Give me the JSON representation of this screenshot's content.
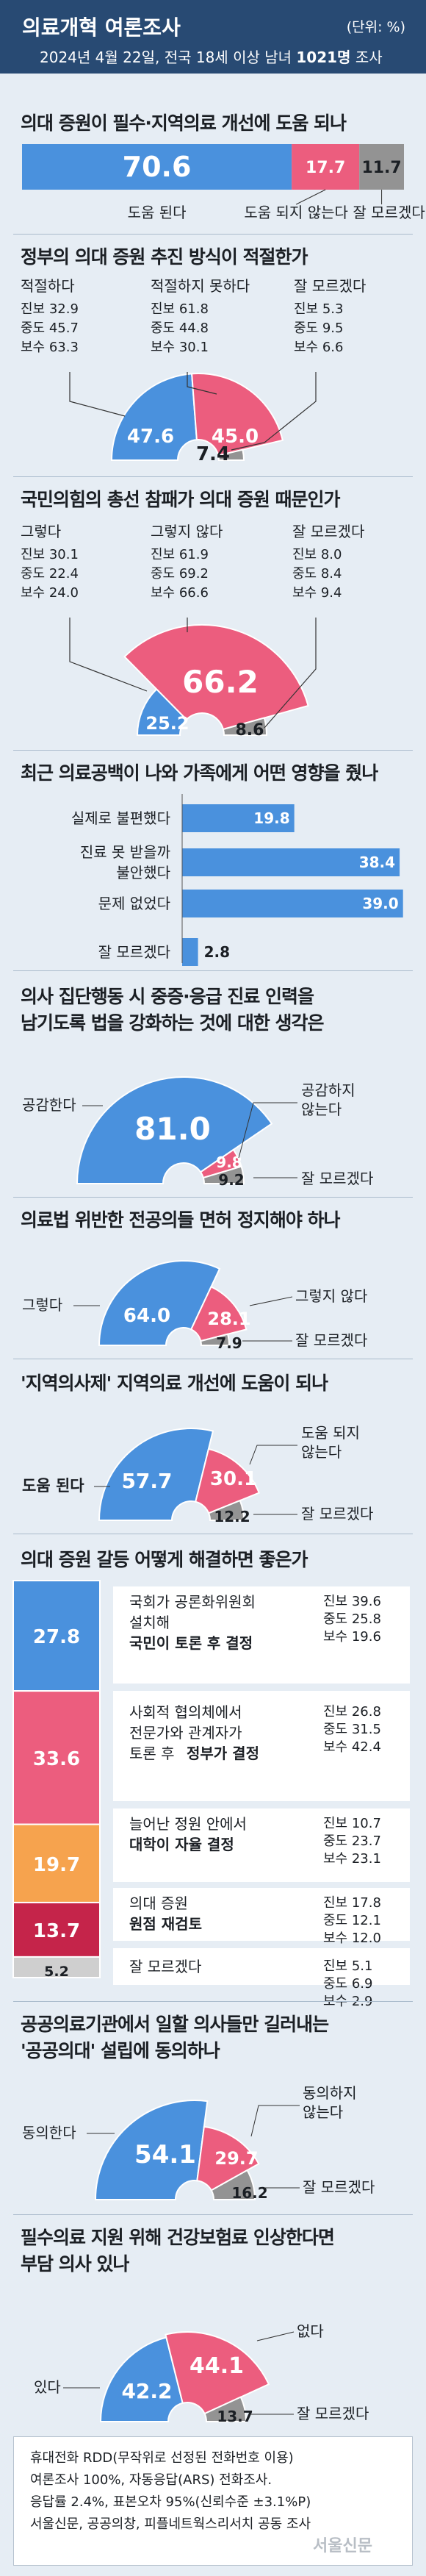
{
  "header": {
    "title": "의료개혁 여론조사",
    "unit": "(단위: %)",
    "subtitle_pre": "2024년 4월 22일, 전국 18세 이상 남녀 ",
    "subtitle_bold": "1021명",
    "subtitle_post": " 조사"
  },
  "colors": {
    "blue": "#4a91dd",
    "pink": "#ec5d7e",
    "gray": "#939393",
    "orange": "#f6a34e",
    "crimson": "#c5244a",
    "lightgray": "#cfcfcf"
  },
  "chart_data": [
    {
      "id": "q1",
      "type": "bar",
      "stacked": true,
      "title": "의대 증원이 필수·지역의료 개선에 도움 되나",
      "categories": [
        "도움 된다",
        "도움 되지 않는다",
        "잘 모르겠다"
      ],
      "values": [
        70.6,
        17.7,
        11.7
      ],
      "value_labels": [
        "70.6",
        "17.7",
        "11.7"
      ]
    },
    {
      "id": "q2",
      "type": "pie",
      "semi": true,
      "title": "정부의 의대 증원 추진 방식이 적절한가",
      "categories": [
        "적절하다",
        "적절하지 못하다",
        "잘 모르겠다"
      ],
      "values": [
        47.6,
        45.0,
        7.4
      ],
      "value_labels": [
        "47.6",
        "45.0",
        "7.4"
      ],
      "breakdown": [
        [
          "진보 32.9",
          "중도 45.7",
          "보수 63.3"
        ],
        [
          "진보 61.8",
          "중도 44.8",
          "보수 30.1"
        ],
        [
          "진보 5.3",
          "중도 9.5",
          "보수 6.6"
        ]
      ]
    },
    {
      "id": "q3",
      "type": "pie",
      "semi": true,
      "title": "국민의힘의 총선 참패가 의대 증원 때문인가",
      "categories": [
        "그렇다",
        "그렇지 않다",
        "잘 모르겠다"
      ],
      "values": [
        25.2,
        66.2,
        8.6
      ],
      "value_labels": [
        "25.2",
        "66.2",
        "8.6"
      ],
      "breakdown": [
        [
          "진보 30.1",
          "중도 22.4",
          "보수 24.0"
        ],
        [
          "진보 61.9",
          "중도 69.2",
          "보수 66.6"
        ],
        [
          "진보 8.0",
          "중도 8.4",
          "보수 9.4"
        ]
      ]
    },
    {
      "id": "q4",
      "type": "bar",
      "orientation": "horizontal",
      "title": "최근 의료공백이 나와 가족에게 어떤 영향을 줬나",
      "categories": [
        "실제로 불편했다",
        "진료 못 받을까 불안했다",
        "문제 없었다",
        "잘 모르겠다"
      ],
      "label_lines": [
        [
          "실제로 불편했다"
        ],
        [
          "진료 못 받을까",
          "불안했다"
        ],
        [
          "문제 없었다"
        ],
        [
          "잘 모르겠다"
        ]
      ],
      "values": [
        19.8,
        38.4,
        39.0,
        2.8
      ],
      "value_labels": [
        "19.8",
        "38.4",
        "39.0",
        "2.8"
      ]
    },
    {
      "id": "q5",
      "type": "pie",
      "semi": true,
      "title": "의사 집단행동 시 중증·응급 진료 인력을 남기도록 법을 강화하는 것에 대한 생각은",
      "title_lines": [
        "의사 집단행동 시 중증·응급 진료 인력을",
        "남기도록 법을 강화하는 것에 대한 생각은"
      ],
      "categories": [
        "공감한다",
        "공감하지 않는다",
        "잘 모르겠다"
      ],
      "label_lines": [
        [
          "공감한다"
        ],
        [
          "공감하지",
          "않는다"
        ],
        [
          "잘 모르겠다"
        ]
      ],
      "values": [
        81.0,
        9.8,
        9.2
      ],
      "value_labels": [
        "81.0",
        "9.8",
        "9.2"
      ]
    },
    {
      "id": "q6",
      "type": "pie",
      "semi": true,
      "title": "의료법 위반한 전공의들 면허 정지해야 하나",
      "categories": [
        "그렇다",
        "그렇지 않다",
        "잘 모르겠다"
      ],
      "values": [
        64.0,
        28.1,
        7.9
      ],
      "value_labels": [
        "64.0",
        "28.1",
        "7.9"
      ]
    },
    {
      "id": "q7",
      "type": "pie",
      "semi": true,
      "title": "'지역의사제' 지역의료 개선에 도움이 되나",
      "categories": [
        "도움 된다",
        "도움 되지 않는다",
        "잘 모르겠다"
      ],
      "label_lines": [
        [
          "도움 된다"
        ],
        [
          "도움 되지",
          "않는다"
        ],
        [
          "잘 모르겠다"
        ]
      ],
      "values": [
        57.7,
        30.1,
        12.2
      ],
      "value_labels": [
        "57.7",
        "30.1",
        "12.2"
      ]
    },
    {
      "id": "q8",
      "type": "bar",
      "stacked": true,
      "orientation": "vertical",
      "title": "의대 증원 갈등 어떻게 해결하면 좋은가",
      "categories": [
        "국회가 공론화위원회 설치해 국민이 토론 후 결정",
        "사회적 협의체에서 전문가와 관계자가 토론 후 정부가 결정",
        "늘어난 정원 안에서 대학이 자율 결정",
        "의대 증원 원점 재검토",
        "잘 모르겠다"
      ],
      "label_lines": [
        {
          "normal": [
            "국회가 공론화위원회",
            "설치해"
          ],
          "bold": [
            "국민이 토론 후 결정"
          ]
        },
        {
          "normal": [
            "사회적 협의체에서",
            "전문가와 관계자가"
          ],
          "mixed": [
            "토론 후 ",
            "정부가 결정"
          ]
        },
        {
          "normal": [
            "늘어난 정원 안에서"
          ],
          "bold": [
            "대학이 자율 결정"
          ]
        },
        {
          "normal": [
            "의대 증원"
          ],
          "bold": [
            "원점 재검토"
          ]
        },
        {
          "normal": [
            "잘 모르겠다"
          ]
        }
      ],
      "values": [
        27.8,
        33.6,
        19.7,
        13.7,
        5.2
      ],
      "value_labels": [
        "27.8",
        "33.6",
        "19.7",
        "13.7",
        "5.2"
      ],
      "breakdown": [
        [
          "진보 39.6",
          "중도 25.8",
          "보수 19.6"
        ],
        [
          "진보 26.8",
          "중도 31.5",
          "보수 42.4"
        ],
        [
          "진보 10.7",
          "중도 23.7",
          "보수 23.1"
        ],
        [
          "진보 17.8",
          "중도 12.1",
          "보수 12.0"
        ],
        [
          "진보 5.1",
          "중도 6.9",
          "보수 2.9"
        ]
      ]
    },
    {
      "id": "q9",
      "type": "pie",
      "semi": true,
      "title": "공공의료기관에서 일할 의사들만 길러내는 '공공의대' 설립에 동의하나",
      "title_lines": [
        "공공의료기관에서 일할 의사들만 길러내는",
        "'공공의대' 설립에 동의하나"
      ],
      "categories": [
        "동의한다",
        "동의하지 않는다",
        "잘 모르겠다"
      ],
      "label_lines": [
        [
          "동의한다"
        ],
        [
          "동의하지",
          "않는다"
        ],
        [
          "잘 모르겠다"
        ]
      ],
      "values": [
        54.1,
        29.7,
        16.2
      ],
      "value_labels": [
        "54.1",
        "29.7",
        "16.2"
      ]
    },
    {
      "id": "q10",
      "type": "pie",
      "semi": true,
      "title": "필수의료 지원 위해 건강보험료 인상한다면 부담 의사 있나",
      "title_lines": [
        "필수의료 지원 위해 건강보험료 인상한다면",
        "부담 의사 있나"
      ],
      "categories": [
        "있다",
        "없다",
        "잘 모르겠다"
      ],
      "values": [
        42.2,
        44.1,
        13.7
      ],
      "value_labels": [
        "42.2",
        "44.1",
        "13.7"
      ]
    }
  ],
  "footer": {
    "lines": [
      "휴대전화 RDD(무작위로 선정된 전화번호 이용)",
      "여론조사 100%, 자동응답(ARS) 전화조사.",
      "응답률 2.4%, 표본오차 95%(신뢰수준 ±3.1%P)",
      "서울신문, 공공의창, 피플네트웍스리서치 공동 조사"
    ],
    "watermark": "서울신문"
  }
}
